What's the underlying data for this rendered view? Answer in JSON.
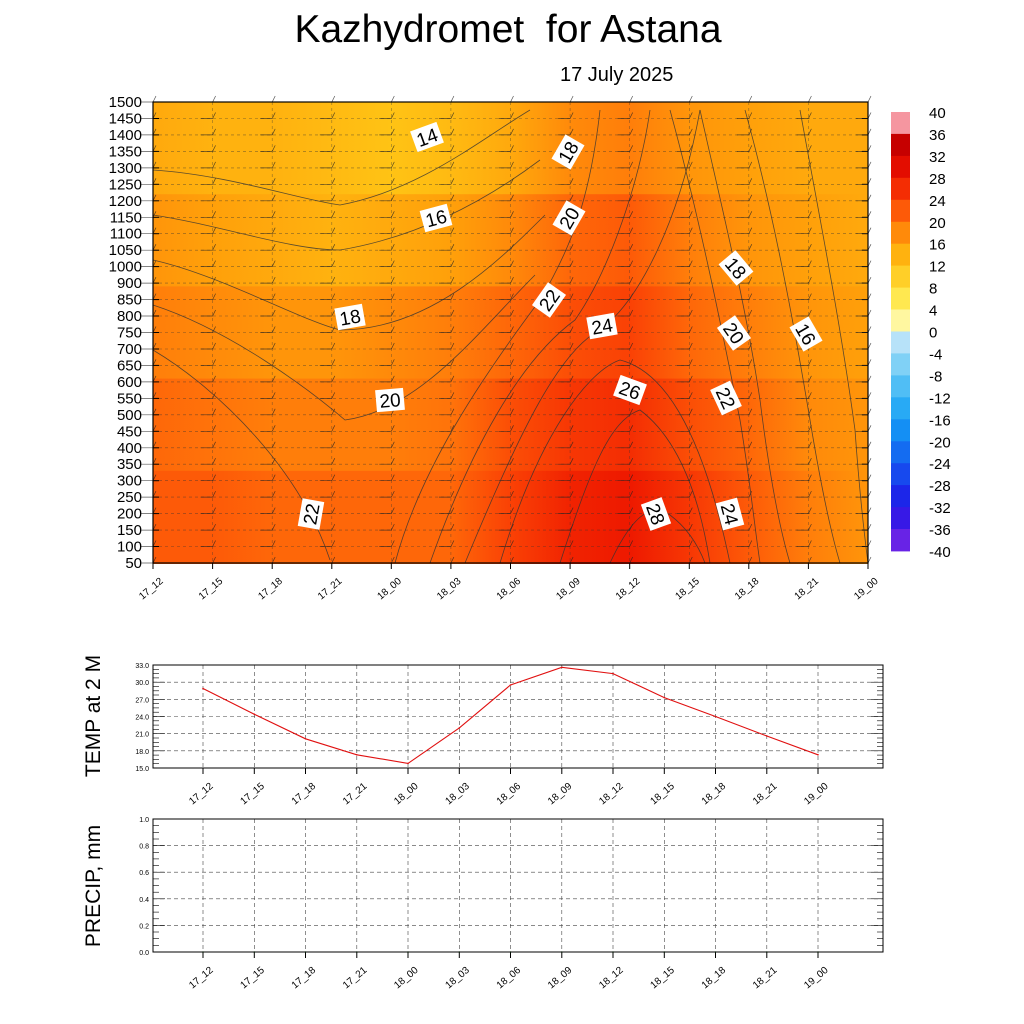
{
  "header": {
    "title": "Kazhydromet  for Astana",
    "date": "17 July 2025"
  },
  "chart_data": [
    {
      "type": "heatmap",
      "subtitle": "Temperature cross-section with wind barbs",
      "x_labels": [
        "17_12",
        "17_15",
        "17_18",
        "17_21",
        "18_00",
        "18_03",
        "18_06",
        "18_09",
        "18_12",
        "18_15",
        "18_18",
        "18_21",
        "19_00"
      ],
      "y_ticks": [
        1500,
        1450,
        1400,
        1350,
        1300,
        1250,
        1200,
        1150,
        1100,
        1050,
        1000,
        900,
        850,
        800,
        750,
        700,
        650,
        600,
        550,
        500,
        450,
        400,
        350,
        300,
        250,
        200,
        150,
        100,
        50
      ],
      "temperature_grid": [
        [
          15,
          14,
          14,
          13,
          12,
          13,
          15,
          18,
          19,
          17,
          16,
          15,
          15
        ],
        [
          17,
          16,
          15,
          14,
          15,
          16,
          18,
          21,
          22,
          19,
          17,
          16,
          15
        ],
        [
          19,
          18,
          17,
          17,
          18,
          19,
          21,
          23,
          24,
          21,
          19,
          17,
          16
        ],
        [
          21,
          20,
          19,
          19,
          19,
          20,
          23,
          25,
          26,
          23,
          21,
          18,
          17
        ],
        [
          22,
          22,
          21,
          21,
          21,
          21,
          24,
          27,
          28,
          25,
          22,
          19,
          17
        ]
      ],
      "contours": [
        {
          "label": "14"
        },
        {
          "label": "16"
        },
        {
          "label": "18"
        },
        {
          "label": "20"
        },
        {
          "label": "22"
        },
        {
          "label": "18"
        },
        {
          "label": "20"
        },
        {
          "label": "22"
        },
        {
          "label": "24"
        },
        {
          "label": "26"
        },
        {
          "label": "28"
        },
        {
          "label": "18"
        },
        {
          "label": "20"
        },
        {
          "label": "22"
        },
        {
          "label": "24"
        },
        {
          "label": "16"
        }
      ],
      "colorbar": {
        "labels": [
          "40",
          "36",
          "32",
          "28",
          "24",
          "20",
          "16",
          "12",
          "8",
          "4",
          "0",
          "-4",
          "-8",
          "-12",
          "-16",
          "-20",
          "-24",
          "-28",
          "-32",
          "-36",
          "-40"
        ],
        "range": [
          -40,
          40
        ]
      }
    },
    {
      "type": "line",
      "ylabel": "TEMP at 2 M",
      "x": [
        "17_12",
        "17_15",
        "17_18",
        "17_21",
        "18_00",
        "18_03",
        "18_06",
        "18_09",
        "18_12",
        "18_15",
        "18_18",
        "18_21",
        "19_00"
      ],
      "values": [
        28.9,
        24.4,
        20.1,
        17.3,
        15.8,
        22.0,
        29.5,
        32.6,
        31.5,
        27.3,
        24.0,
        20.6,
        17.3
      ],
      "ylim": [
        15.0,
        33.0
      ],
      "y_ticks": [
        "33.0",
        "30.0",
        "27.0",
        "24.0",
        "21.0",
        "18.0",
        "15.0"
      ],
      "color": "#e01010"
    },
    {
      "type": "line",
      "ylabel": "PRECIP, mm",
      "x": [
        "17_12",
        "17_15",
        "17_18",
        "17_21",
        "18_00",
        "18_03",
        "18_06",
        "18_09",
        "18_12",
        "18_15",
        "18_18",
        "18_21",
        "19_00"
      ],
      "values": [
        0,
        0,
        0,
        0,
        0,
        0,
        0,
        0,
        0,
        0,
        0,
        0,
        0
      ],
      "ylim": [
        0,
        1.0
      ],
      "y_ticks": [
        "1.0",
        "0.8",
        "0.6",
        "0.4",
        "0.2",
        "0.0"
      ],
      "color": "#1a7a1a"
    }
  ]
}
